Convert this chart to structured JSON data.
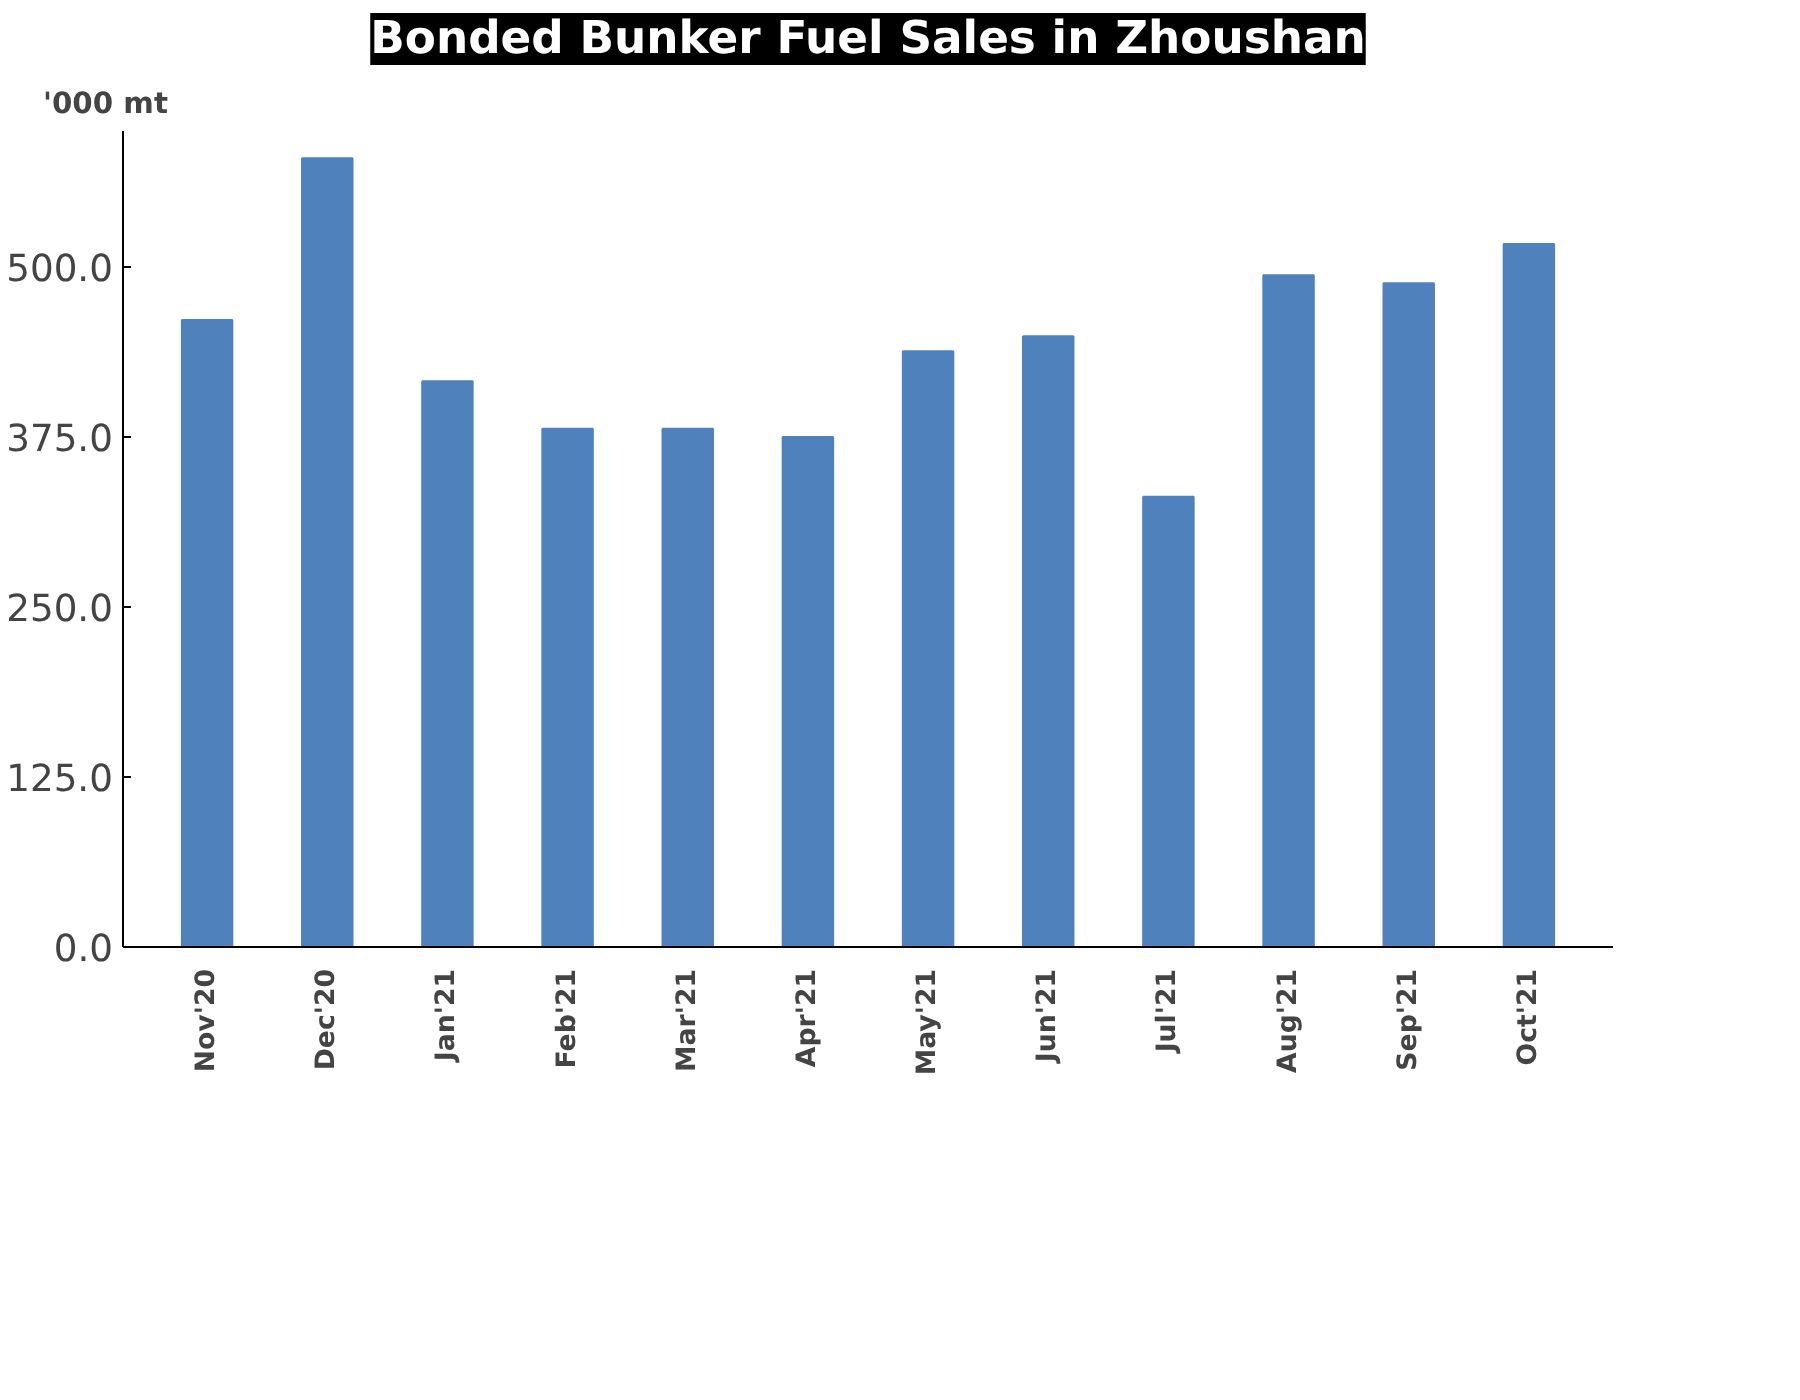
{
  "chart_data": {
    "type": "bar",
    "title": "Bonded Bunker Fuel Sales in Zhoushan",
    "ylabel": "'000 mt",
    "categories": [
      "Nov'20",
      "Dec'20",
      "Jan'21",
      "Feb'21",
      "Mar'21",
      "Apr'21",
      "May'21",
      "Jun'21",
      "Jul'21",
      "Aug'21",
      "Sep'21",
      "Oct'21"
    ],
    "values": [
      461,
      580,
      416,
      381,
      381,
      375,
      438,
      449,
      331,
      494,
      488,
      517
    ],
    "color": "#4f81bd",
    "ylim": [
      0,
      600
    ],
    "yticks": [
      {
        "value": 0,
        "label": "0.0"
      },
      {
        "value": 125,
        "label": "125.0"
      },
      {
        "value": 250,
        "label": "250.0"
      },
      {
        "value": 375,
        "label": "375.0"
      },
      {
        "value": 500,
        "label": "500.0"
      }
    ],
    "grid": false
  }
}
